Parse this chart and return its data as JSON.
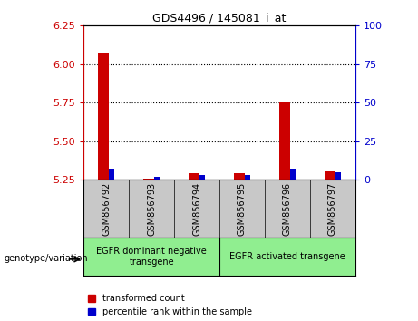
{
  "title": "GDS4496 / 145081_i_at",
  "samples": [
    "GSM856792",
    "GSM856793",
    "GSM856794",
    "GSM856795",
    "GSM856796",
    "GSM856797"
  ],
  "red_values": [
    6.07,
    5.255,
    5.295,
    5.295,
    5.75,
    5.305
  ],
  "blue_values_pct": [
    7,
    2,
    3,
    3,
    7,
    5
  ],
  "ylim_left": [
    5.25,
    6.25
  ],
  "ylim_right": [
    0,
    100
  ],
  "yticks_left": [
    5.25,
    5.5,
    5.75,
    6.0,
    6.25
  ],
  "yticks_right": [
    0,
    25,
    50,
    75,
    100
  ],
  "bar_base": 5.25,
  "groups": [
    {
      "label": "EGFR dominant negative\ntransgene",
      "start": 0,
      "end": 2
    },
    {
      "label": "EGFR activated transgene",
      "start": 3,
      "end": 5
    }
  ],
  "legend_red_label": "transformed count",
  "legend_blue_label": "percentile rank within the sample",
  "genotype_label": "genotype/variation",
  "left_color": "#CC0000",
  "right_color": "#0000CC",
  "tick_color_left": "#CC0000",
  "tick_color_right": "#0000CC",
  "red_bar_width": 0.25,
  "blue_bar_width": 0.12,
  "group_color": "#90EE90",
  "sample_bg": "#C8C8C8",
  "plot_bg": "#ffffff"
}
